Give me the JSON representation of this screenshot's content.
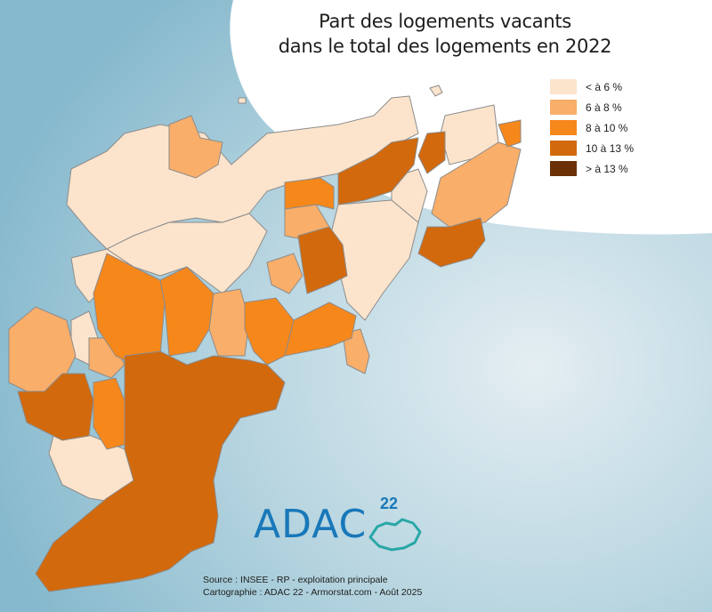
{
  "title_line1": "Part des logements vacants",
  "title_line2": "dans le total des logements en 2022",
  "legend": [
    {
      "label": "< à 6 %",
      "color": "#fce4cc"
    },
    {
      "label": "6 à 8 %",
      "color": "#f9ae69"
    },
    {
      "label": "8 à 10 %",
      "color": "#f6871b"
    },
    {
      "label": "10 à 13 %",
      "color": "#d2690c"
    },
    {
      "label": "> à 13 %",
      "color": "#6b3104"
    }
  ],
  "logo": {
    "text": "ADAC",
    "number": "22"
  },
  "source_line1": "Source : INSEE - RP - exploitation principale",
  "source_line2": "Cartographie : ADAC 22 - Armorstat.com - Août 2025"
}
